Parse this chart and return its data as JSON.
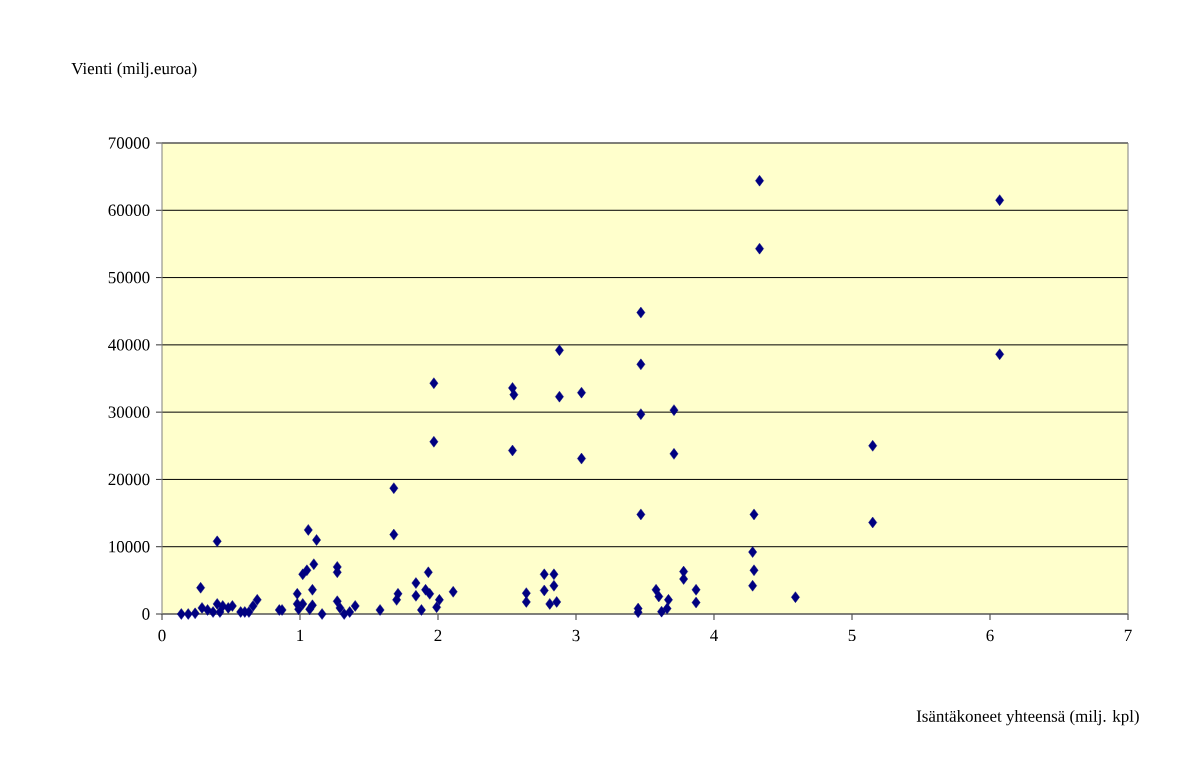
{
  "chart_data": {
    "type": "scatter",
    "ylabel": "Vienti (milj.euroa)",
    "xlabel": "Isäntäkoneet yhteensä (milj. kpl)",
    "x": [
      0.14,
      0.19,
      0.24,
      0.28,
      0.29,
      0.33,
      0.37,
      0.4,
      0.4,
      0.42,
      0.44,
      0.48,
      0.51,
      0.57,
      0.6,
      0.63,
      0.66,
      0.69,
      0.85,
      0.87,
      0.98,
      0.98,
      0.99,
      1.02,
      1.02,
      1.05,
      1.06,
      1.07,
      1.09,
      1.09,
      1.1,
      1.12,
      1.16,
      1.27,
      1.27,
      1.27,
      1.29,
      1.32,
      1.36,
      1.4,
      1.58,
      1.68,
      1.68,
      1.7,
      1.71,
      1.84,
      1.84,
      1.88,
      1.91,
      1.93,
      1.94,
      1.97,
      1.97,
      1.99,
      2.01,
      2.11,
      3.47,
      2.88,
      3.47,
      2.54,
      2.55,
      2.88,
      3.04,
      3.47,
      3.71,
      2.54,
      3.04,
      3.71,
      3.47,
      4.29,
      4.28,
      4.29,
      4.28,
      4.59,
      2.64,
      2.64,
      2.77,
      2.84,
      2.77,
      2.84,
      2.81,
      2.86,
      3.45,
      3.45,
      3.58,
      3.6,
      3.67,
      3.62,
      3.66,
      3.78,
      3.78,
      3.87,
      3.87,
      4.33,
      6.07,
      4.33,
      6.07,
      5.15,
      5.15
    ],
    "values": [
      0,
      0,
      100,
      3900,
      900,
      600,
      300,
      10800,
      1500,
      300,
      1200,
      900,
      1200,
      300,
      300,
      300,
      1200,
      2100,
      600,
      600,
      3000,
      1500,
      700,
      1500,
      5900,
      6500,
      12500,
      700,
      1300,
      3600,
      7400,
      11000,
      0,
      7000,
      6200,
      1900,
      900,
      0,
      300,
      1200,
      600,
      11800,
      18700,
      2100,
      3000,
      4600,
      2700,
      600,
      3600,
      6200,
      3000,
      34300,
      25600,
      1000,
      2100,
      3300,
      44800,
      39200,
      37100,
      33600,
      32600,
      32300,
      32900,
      29700,
      30300,
      24300,
      23100,
      23800,
      14800,
      14800,
      9200,
      6500,
      4200,
      2500,
      3100,
      1800,
      5900,
      5900,
      3500,
      4200,
      1500,
      1800,
      800,
      250,
      3600,
      2600,
      2100,
      350,
      800,
      6300,
      5200,
      3600,
      1700,
      64400,
      61500,
      54300,
      38600,
      25000,
      13600
    ],
    "color": "#000080",
    "marker": "diamond",
    "xlim": [
      0,
      7
    ],
    "xticks": [
      0,
      1,
      2,
      3,
      4,
      5,
      6,
      7
    ],
    "ylim": [
      0,
      70000
    ],
    "yticks": [
      0,
      10000,
      20000,
      30000,
      40000,
      50000,
      60000,
      70000
    ],
    "grid": "y"
  }
}
